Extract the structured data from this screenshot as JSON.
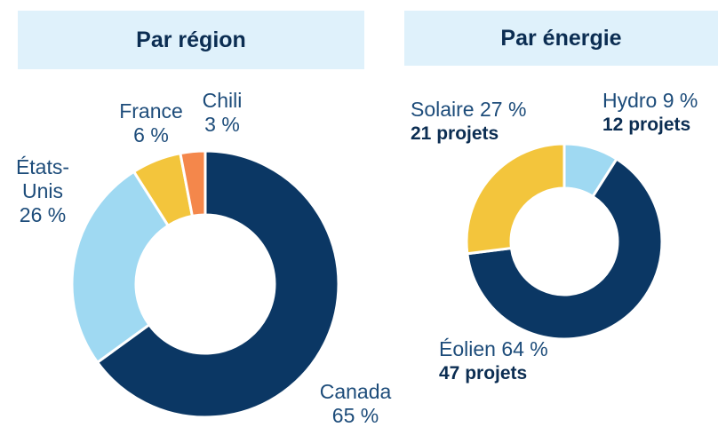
{
  "chart_data": [
    {
      "type": "pie",
      "title": "Par région",
      "categories": [
        "Canada",
        "États-Unis",
        "France",
        "Chili"
      ],
      "values": [
        65,
        26,
        6,
        3
      ],
      "value_labels": [
        "65 %",
        "26 %",
        "6 %",
        "3 %"
      ],
      "colors": [
        "#0b3764",
        "#9fd9f2",
        "#f3c53c",
        "#f4874b"
      ]
    },
    {
      "type": "pie",
      "title": "Par énergie",
      "categories": [
        "Hydro",
        "Éolien",
        "Solaire"
      ],
      "values": [
        9,
        64,
        27
      ],
      "value_labels": [
        "9 %",
        "64 %",
        "27 %"
      ],
      "counts": [
        12,
        47,
        21
      ],
      "count_labels": [
        "12 projets",
        "47 projets",
        "21 projets"
      ],
      "colors": [
        "#9fd9f2",
        "#0b3764",
        "#f3c53c"
      ]
    }
  ]
}
